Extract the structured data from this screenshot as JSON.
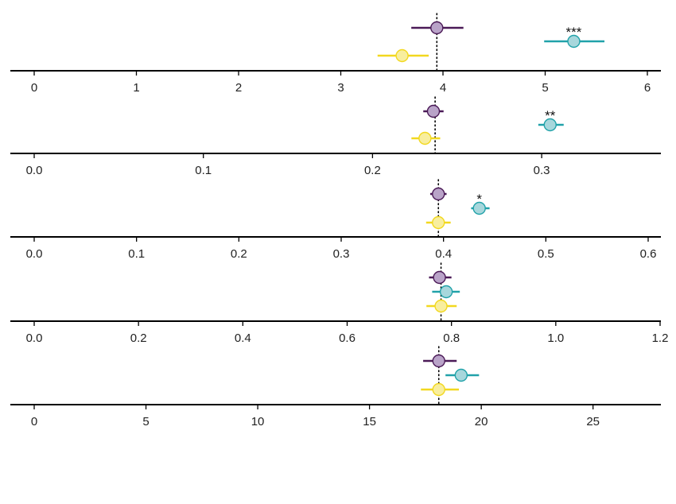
{
  "colors": {
    "purple": "#4b1a57",
    "purple_fill": "#b9a3c8",
    "teal": "#21a2a9",
    "teal_fill": "#a7d7dc",
    "yellow": "#f2d81f",
    "yellow_fill": "#f8ee9e",
    "axis": "#000000",
    "text": "#222222"
  },
  "chart_data": [
    {
      "type": "scatter",
      "xlim": [
        0,
        6
      ],
      "ticks": [
        0,
        1,
        2,
        3,
        4,
        5,
        6
      ],
      "tick_labels": [
        "0",
        "1",
        "2",
        "3",
        "4",
        "5",
        "6"
      ],
      "reference": 3.94,
      "series": [
        {
          "color": "purple",
          "x": 3.94,
          "lo": 3.69,
          "hi": 4.2,
          "sig": ""
        },
        {
          "color": "teal",
          "x": 5.28,
          "lo": 4.99,
          "hi": 5.58,
          "sig": "***"
        },
        {
          "color": "yellow",
          "x": 3.6,
          "lo": 3.36,
          "hi": 3.86,
          "sig": ""
        }
      ]
    },
    {
      "type": "scatter",
      "xlim": [
        0,
        0.37
      ],
      "ticks": [
        0.0,
        0.1,
        0.2,
        0.3
      ],
      "tick_labels": [
        "0.0",
        "0.1",
        "0.2",
        "0.3"
      ],
      "reference": 0.237,
      "series": [
        {
          "color": "purple",
          "x": 0.236,
          "lo": 0.23,
          "hi": 0.242,
          "sig": ""
        },
        {
          "color": "teal",
          "x": 0.305,
          "lo": 0.298,
          "hi": 0.313,
          "sig": "**"
        },
        {
          "color": "yellow",
          "x": 0.231,
          "lo": 0.223,
          "hi": 0.24,
          "sig": ""
        }
      ]
    },
    {
      "type": "scatter",
      "xlim": [
        0,
        0.6
      ],
      "ticks": [
        0.0,
        0.1,
        0.2,
        0.3,
        0.4,
        0.5,
        0.6
      ],
      "tick_labels": [
        "0.0",
        "0.1",
        "0.2",
        "0.3",
        "0.4",
        "0.5",
        "0.6"
      ],
      "reference": 0.395,
      "series": [
        {
          "color": "purple",
          "x": 0.395,
          "lo": 0.387,
          "hi": 0.403,
          "sig": ""
        },
        {
          "color": "teal",
          "x": 0.435,
          "lo": 0.427,
          "hi": 0.445,
          "sig": "*"
        },
        {
          "color": "yellow",
          "x": 0.395,
          "lo": 0.383,
          "hi": 0.407,
          "sig": ""
        }
      ]
    },
    {
      "type": "scatter",
      "xlim": [
        0,
        1.2
      ],
      "ticks": [
        0.0,
        0.2,
        0.4,
        0.6,
        0.8,
        1.0,
        1.2
      ],
      "tick_labels": [
        "0.0",
        "0.2",
        "0.4",
        "0.6",
        "0.8",
        "1.0",
        "1.2"
      ],
      "reference": 0.78,
      "series": [
        {
          "color": "purple",
          "x": 0.777,
          "lo": 0.757,
          "hi": 0.8,
          "sig": ""
        },
        {
          "color": "teal",
          "x": 0.79,
          "lo": 0.763,
          "hi": 0.816,
          "sig": ""
        },
        {
          "color": "yellow",
          "x": 0.78,
          "lo": 0.752,
          "hi": 0.81,
          "sig": ""
        }
      ]
    },
    {
      "type": "scatter",
      "xlim": [
        0,
        28
      ],
      "ticks": [
        0,
        5,
        10,
        15,
        20,
        25
      ],
      "tick_labels": [
        "0",
        "5",
        "10",
        "15",
        "20",
        "25"
      ],
      "reference": 18.1,
      "series": [
        {
          "color": "purple",
          "x": 18.1,
          "lo": 17.4,
          "hi": 18.9,
          "sig": ""
        },
        {
          "color": "teal",
          "x": 19.1,
          "lo": 18.4,
          "hi": 19.9,
          "sig": ""
        },
        {
          "color": "yellow",
          "x": 18.1,
          "lo": 17.3,
          "hi": 19.0,
          "sig": ""
        }
      ]
    }
  ]
}
